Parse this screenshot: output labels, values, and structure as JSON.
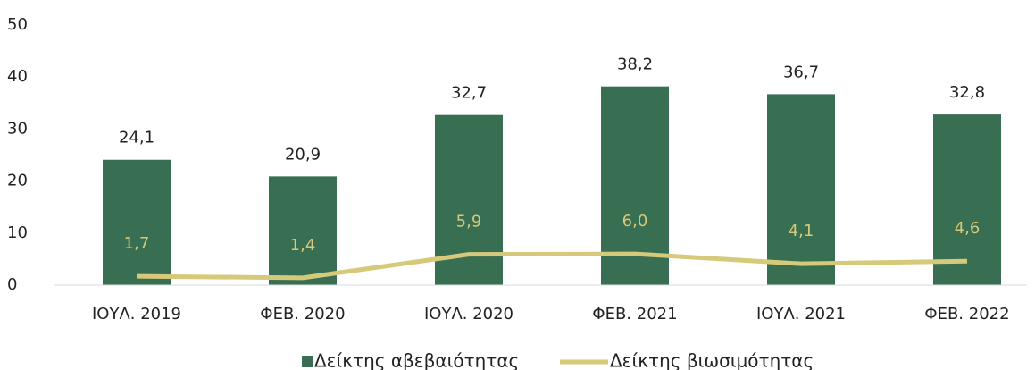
{
  "chart_data": {
    "type": "bar",
    "categories": [
      "ΙΟΥΛ. 2019",
      "ΦΕΒ. 2020",
      "ΙΟΥΛ. 2020",
      "ΦΕΒ. 2021",
      "ΙΟΥΛ. 2021",
      "ΦΕΒ. 2022"
    ],
    "series": [
      {
        "name": "Δείκτης αβεβαιότητας",
        "type": "bar",
        "color": "#386e52",
        "values": [
          24.1,
          20.9,
          32.7,
          38.2,
          36.7,
          32.8
        ],
        "value_labels": [
          "24,1",
          "20,9",
          "32,7",
          "38,2",
          "36,7",
          "32,8"
        ],
        "label_color": "#222222"
      },
      {
        "name": "Δείκτης βιωσιμότητας",
        "type": "line",
        "color": "#d6c979",
        "values": [
          1.7,
          1.4,
          5.9,
          6.0,
          4.1,
          4.6
        ],
        "value_labels": [
          "1,7",
          "1,4",
          "5,9",
          "6,0",
          "4,1",
          "4,6"
        ],
        "label_color": "#d6c979"
      }
    ],
    "ylim": [
      0,
      50
    ],
    "yticks": [
      0,
      10,
      20,
      30,
      40,
      50
    ],
    "grid": false,
    "legend": "bottom"
  }
}
